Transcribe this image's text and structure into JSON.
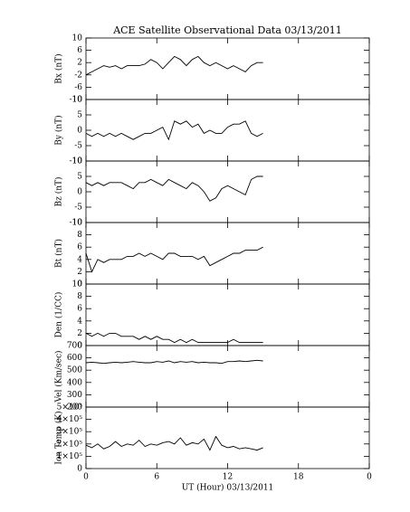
{
  "chart_data": [
    {
      "type": "line",
      "title": "ACE Satellite Observational Data  03/13/2011",
      "ylabel": "Bx (nT)",
      "x": [
        0,
        0.5,
        1,
        1.5,
        2,
        2.5,
        3,
        3.5,
        4,
        4.5,
        5,
        5.5,
        6,
        6.5,
        7,
        7.5,
        8,
        8.5,
        9,
        9.5,
        10,
        10.5,
        11,
        11.5,
        12,
        12.5,
        13,
        13.5,
        14,
        14.5,
        15
      ],
      "values": [
        -2,
        -1,
        0,
        1,
        0.5,
        1,
        0,
        1,
        1,
        1,
        1.5,
        3,
        2,
        0,
        2,
        4,
        3,
        1,
        3,
        4,
        2,
        1,
        2,
        1,
        0,
        1,
        0,
        -1,
        1,
        2,
        2
      ],
      "xlim": [
        0,
        24
      ],
      "ylim": [
        -10,
        10
      ],
      "yticks": [
        -10,
        -6,
        -2,
        2,
        6,
        10
      ]
    },
    {
      "type": "line",
      "ylabel": "By (nT)",
      "x": [
        0,
        0.5,
        1,
        1.5,
        2,
        2.5,
        3,
        3.5,
        4,
        4.5,
        5,
        5.5,
        6,
        6.5,
        7,
        7.5,
        8,
        8.5,
        9,
        9.5,
        10,
        10.5,
        11,
        11.5,
        12,
        12.5,
        13,
        13.5,
        14,
        14.5,
        15
      ],
      "values": [
        -1,
        -2,
        -1,
        -2,
        -1,
        -2,
        -1,
        -2,
        -3,
        -2,
        -1,
        -1,
        0,
        1,
        -3,
        3,
        2,
        3,
        1,
        2,
        -1,
        0,
        -1,
        -1,
        1,
        2,
        2,
        3,
        -1,
        -2,
        -1
      ],
      "xlim": [
        0,
        24
      ],
      "ylim": [
        -10,
        10
      ],
      "yticks": [
        -10,
        -5,
        0,
        5,
        10
      ]
    },
    {
      "type": "line",
      "ylabel": "Bz (nT)",
      "x": [
        0,
        0.5,
        1,
        1.5,
        2,
        2.5,
        3,
        3.5,
        4,
        4.5,
        5,
        5.5,
        6,
        6.5,
        7,
        7.5,
        8,
        8.5,
        9,
        9.5,
        10,
        10.5,
        11,
        11.5,
        12,
        12.5,
        13,
        13.5,
        14,
        14.5,
        15
      ],
      "values": [
        3,
        2,
        3,
        2,
        3,
        3,
        3,
        2,
        1,
        3,
        3,
        4,
        3,
        2,
        4,
        3,
        2,
        1,
        3,
        2,
        0,
        -3,
        -2,
        1,
        2,
        1,
        0,
        -1,
        4,
        5,
        5
      ],
      "xlim": [
        0,
        24
      ],
      "ylim": [
        -10,
        10
      ],
      "yticks": [
        -10,
        -5,
        0,
        5,
        10
      ]
    },
    {
      "type": "line",
      "ylabel": "Bt (nT)",
      "x": [
        0,
        0.5,
        1,
        1.5,
        2,
        2.5,
        3,
        3.5,
        4,
        4.5,
        5,
        5.5,
        6,
        6.5,
        7,
        7.5,
        8,
        8.5,
        9,
        9.5,
        10,
        10.5,
        11,
        11.5,
        12,
        12.5,
        13,
        13.5,
        14,
        14.5,
        15
      ],
      "values": [
        5,
        2,
        4,
        3.5,
        4,
        4,
        4,
        4.5,
        4.5,
        5,
        4.5,
        5,
        4.5,
        4,
        5,
        5,
        4.5,
        4.5,
        4.5,
        4,
        4.5,
        3,
        3.5,
        4,
        4.5,
        5,
        5,
        5.5,
        5.5,
        5.5,
        6
      ],
      "xlim": [
        0,
        24
      ],
      "ylim": [
        0,
        10
      ],
      "yticks": [
        0,
        2,
        4,
        6,
        8,
        10
      ]
    },
    {
      "type": "line",
      "ylabel": "Den (1/CC)",
      "x": [
        0,
        0.5,
        1,
        1.5,
        2,
        2.5,
        3,
        3.5,
        4,
        4.5,
        5,
        5.5,
        6,
        6.5,
        7,
        7.5,
        8,
        8.5,
        9,
        9.5,
        10,
        10.5,
        11,
        11.5,
        12,
        12.5,
        13,
        13.5,
        14,
        14.5,
        15
      ],
      "values": [
        2,
        1.5,
        2,
        1.5,
        2,
        2,
        1.5,
        1.5,
        1.5,
        1,
        1.5,
        1,
        1.5,
        1,
        1,
        0.5,
        1,
        0.5,
        1,
        0.5,
        0.5,
        0.5,
        0.5,
        0.5,
        0.5,
        1,
        0.5,
        0.5,
        0.5,
        0.5,
        0.5
      ],
      "xlim": [
        0,
        24
      ],
      "ylim": [
        0,
        10
      ],
      "yticks": [
        0,
        2,
        4,
        6,
        8,
        10
      ]
    },
    {
      "type": "line",
      "ylabel": "Vel (Km/sec)",
      "x": [
        0,
        0.5,
        1,
        1.5,
        2,
        2.5,
        3,
        3.5,
        4,
        4.5,
        5,
        5.5,
        6,
        6.5,
        7,
        7.5,
        8,
        8.5,
        9,
        9.5,
        10,
        10.5,
        11,
        11.5,
        12,
        12.5,
        13,
        13.5,
        14,
        14.5,
        15
      ],
      "values": [
        560,
        565,
        560,
        555,
        560,
        565,
        560,
        565,
        570,
        565,
        560,
        560,
        570,
        565,
        575,
        560,
        570,
        565,
        570,
        560,
        565,
        560,
        560,
        555,
        570,
        570,
        575,
        570,
        575,
        580,
        575
      ],
      "xlim": [
        0,
        24
      ],
      "ylim": [
        200,
        700
      ],
      "yticks": [
        200,
        300,
        400,
        500,
        600,
        700
      ]
    },
    {
      "type": "line",
      "ylabel": "Ion Temp (K)",
      "xlabel": "UT (Hour)  03/13/2011",
      "x": [
        0,
        0.5,
        1,
        1.5,
        2,
        2.5,
        3,
        3.5,
        4,
        4.5,
        5,
        5.5,
        6,
        6.5,
        7,
        7.5,
        8,
        8.5,
        9,
        9.5,
        10,
        10.5,
        11,
        11.5,
        12,
        12.5,
        13,
        13.5,
        14,
        14.5,
        15
      ],
      "values": [
        190000,
        170000,
        200000,
        160000,
        180000,
        220000,
        180000,
        200000,
        190000,
        230000,
        180000,
        200000,
        190000,
        210000,
        220000,
        200000,
        250000,
        190000,
        210000,
        200000,
        240000,
        150000,
        260000,
        190000,
        170000,
        180000,
        160000,
        170000,
        160000,
        150000,
        170000
      ],
      "xlim": [
        0,
        24
      ],
      "ylim": [
        0,
        500000
      ],
      "yticks": [
        0,
        {
          "value": 100000,
          "label": "1×10⁵"
        },
        {
          "value": 200000,
          "label": "2×10⁵"
        },
        {
          "value": 300000,
          "label": "3×10⁵"
        },
        {
          "value": 400000,
          "label": "4×10⁵"
        },
        {
          "value": 500000,
          "label": "5×10⁵"
        }
      ],
      "xticks": [
        0,
        6,
        12,
        18,
        {
          "value": 24,
          "label": "0"
        }
      ]
    }
  ]
}
